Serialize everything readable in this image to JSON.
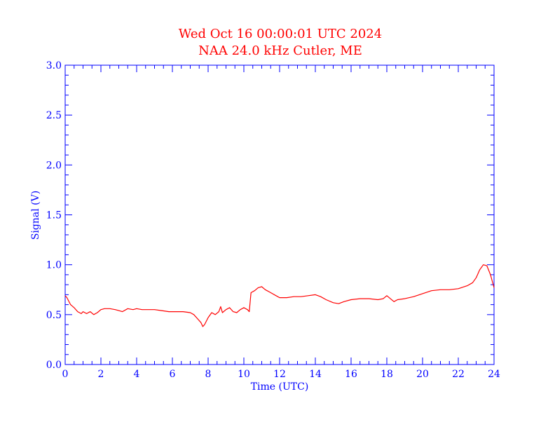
{
  "chart_data": {
    "type": "line",
    "title": "Wed Oct 16 00:00:01 UTC 2024",
    "subtitle": "NAA 24.0 kHz Cutler, ME",
    "xlabel": "Time (UTC)",
    "ylabel": "Signal (V)",
    "xlim": [
      0,
      24
    ],
    "ylim": [
      0,
      3.0
    ],
    "x_ticks": [
      0,
      2,
      4,
      6,
      8,
      10,
      12,
      14,
      16,
      18,
      20,
      22,
      24
    ],
    "x_tick_labels": [
      "0",
      "2",
      "4",
      "6",
      "8",
      "10",
      "12",
      "14",
      "16",
      "18",
      "20",
      "22",
      "24"
    ],
    "y_ticks": [
      0,
      0.5,
      1.0,
      1.5,
      2.0,
      2.5,
      3.0
    ],
    "y_tick_labels": [
      "0.0",
      "0.5",
      "1.0",
      "1.5",
      "2.0",
      "2.5",
      "3.0"
    ],
    "grid": false,
    "series": [
      {
        "color": "#ff0000",
        "x": [
          0.0,
          0.1,
          0.3,
          0.5,
          0.7,
          0.9,
          1.0,
          1.2,
          1.4,
          1.6,
          1.8,
          2.0,
          2.2,
          2.5,
          2.8,
          3.0,
          3.2,
          3.5,
          3.8,
          4.0,
          4.3,
          4.6,
          5.0,
          5.4,
          5.8,
          6.2,
          6.6,
          7.0,
          7.2,
          7.4,
          7.6,
          7.7,
          7.8,
          8.0,
          8.2,
          8.4,
          8.6,
          8.7,
          8.8,
          9.0,
          9.2,
          9.4,
          9.6,
          9.8,
          10.0,
          10.2,
          10.3,
          10.4,
          10.6,
          10.8,
          11.0,
          11.2,
          11.5,
          11.8,
          12.0,
          12.4,
          12.8,
          13.2,
          13.6,
          14.0,
          14.3,
          14.6,
          15.0,
          15.3,
          15.6,
          16.0,
          16.5,
          17.0,
          17.5,
          17.8,
          18.0,
          18.2,
          18.4,
          18.6,
          19.0,
          19.5,
          20.0,
          20.5,
          21.0,
          21.5,
          22.0,
          22.5,
          22.8,
          23.0,
          23.2,
          23.4,
          23.6,
          23.8,
          24.0
        ],
        "y": [
          0.69,
          0.67,
          0.6,
          0.57,
          0.53,
          0.51,
          0.53,
          0.51,
          0.53,
          0.5,
          0.52,
          0.55,
          0.56,
          0.56,
          0.55,
          0.54,
          0.53,
          0.56,
          0.55,
          0.56,
          0.55,
          0.55,
          0.55,
          0.54,
          0.53,
          0.53,
          0.53,
          0.52,
          0.5,
          0.46,
          0.42,
          0.38,
          0.4,
          0.47,
          0.52,
          0.5,
          0.53,
          0.58,
          0.52,
          0.55,
          0.57,
          0.53,
          0.52,
          0.55,
          0.57,
          0.55,
          0.53,
          0.72,
          0.74,
          0.77,
          0.78,
          0.75,
          0.72,
          0.69,
          0.67,
          0.67,
          0.68,
          0.68,
          0.69,
          0.7,
          0.68,
          0.65,
          0.62,
          0.61,
          0.63,
          0.65,
          0.66,
          0.66,
          0.65,
          0.66,
          0.69,
          0.66,
          0.63,
          0.65,
          0.66,
          0.68,
          0.71,
          0.74,
          0.75,
          0.75,
          0.76,
          0.79,
          0.82,
          0.87,
          0.95,
          1.0,
          0.99,
          0.9,
          0.77
        ]
      }
    ]
  }
}
